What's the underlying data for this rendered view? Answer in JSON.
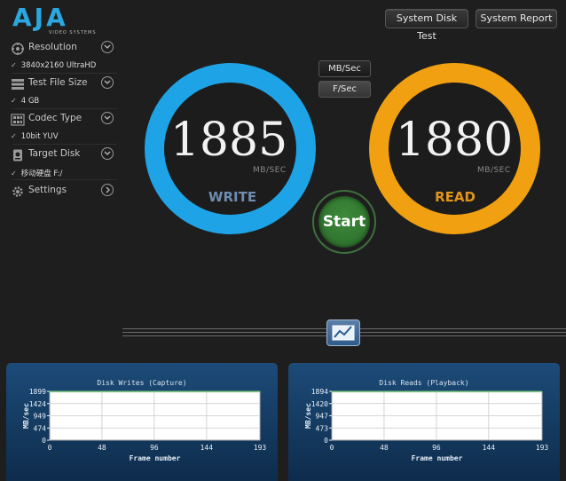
{
  "logo": {
    "text": "AJA",
    "subtitle": "VIDEO SYSTEMS"
  },
  "header": {
    "system_disk_test": "System Disk Test",
    "system_report": "System Report"
  },
  "units": {
    "mb_sec": "MB/Sec",
    "f_sec": "F/Sec",
    "active": "mb_sec"
  },
  "sidebar": {
    "resolution": {
      "label": "Resolution",
      "value": "3840x2160 UltraHD"
    },
    "test_file_size": {
      "label": "Test File Size",
      "value": "4 GB"
    },
    "codec_type": {
      "label": "Codec Type",
      "value": "10bit YUV"
    },
    "target_disk": {
      "label": "Target Disk",
      "value": "移动硬盘  F:/"
    },
    "settings": {
      "label": "Settings"
    }
  },
  "write": {
    "value": "1885",
    "unit": "MB/SEC",
    "label": "WRITE",
    "color": "#1ea4e6"
  },
  "read": {
    "value": "1880",
    "unit": "MB/SEC",
    "label": "READ",
    "color": "#f0a010"
  },
  "start": {
    "label": "Start"
  },
  "chart_data": [
    {
      "type": "line",
      "title": "Disk Writes (Capture)",
      "xlabel": "Frame number",
      "ylabel": "MB/sec",
      "xlim": [
        0,
        193
      ],
      "ylim": [
        0,
        1899
      ],
      "xticks": [
        0,
        48,
        96,
        144,
        193
      ],
      "yticks": [
        0,
        474,
        949,
        1424,
        1899
      ],
      "grid": true,
      "line_color": "#7fd07f",
      "series": [
        {
          "x": [
            0,
            193
          ],
          "y": [
            1885,
            1885
          ]
        }
      ]
    },
    {
      "type": "line",
      "title": "Disk Reads (Playback)",
      "xlabel": "Frame number",
      "ylabel": "MB/sec",
      "xlim": [
        0,
        193
      ],
      "ylim": [
        0,
        1894
      ],
      "xticks": [
        0,
        48,
        96,
        144,
        193
      ],
      "yticks": [
        0,
        473,
        947,
        1420,
        1894
      ],
      "grid": true,
      "line_color": "#7fd07f",
      "series": [
        {
          "x": [
            0,
            193
          ],
          "y": [
            1880,
            1880
          ]
        }
      ]
    }
  ]
}
